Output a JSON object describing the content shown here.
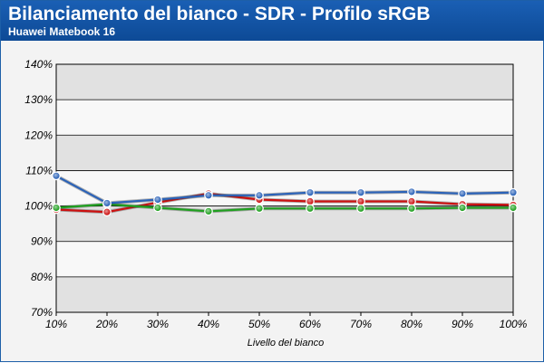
{
  "header": {
    "title": "Bilanciamento del bianco - SDR - Profilo sRGB",
    "subtitle": "Huawei Matebook 16"
  },
  "chart_data": {
    "type": "line",
    "title": "Bilanciamento del bianco - SDR - Profilo sRGB",
    "subtitle": "Huawei Matebook 16",
    "xlabel": "Livello del bianco",
    "ylabel": "",
    "x": [
      "10%",
      "20%",
      "30%",
      "40%",
      "50%",
      "60%",
      "70%",
      "80%",
      "90%",
      "100%"
    ],
    "ylim": [
      70,
      140
    ],
    "yticks": [
      70,
      80,
      90,
      100,
      110,
      120,
      130,
      140
    ],
    "ytick_labels": [
      "70%",
      "80%",
      "90%",
      "100%",
      "110%",
      "120%",
      "130%",
      "140%"
    ],
    "grid": "horizontal bands",
    "legend": "none",
    "series": [
      {
        "color": "#cc1010",
        "values": [
          99.0,
          98.3,
          101.0,
          103.5,
          101.8,
          101.3,
          101.3,
          101.3,
          100.5,
          100.3
        ]
      },
      {
        "color": "#1fa01f",
        "values": [
          99.5,
          100.5,
          99.5,
          98.5,
          99.3,
          99.3,
          99.3,
          99.3,
          99.5,
          99.5
        ]
      },
      {
        "color": "#2a62b8",
        "values": [
          108.5,
          100.8,
          101.8,
          103.0,
          103.0,
          103.8,
          103.8,
          104.0,
          103.5,
          103.8
        ]
      }
    ]
  }
}
